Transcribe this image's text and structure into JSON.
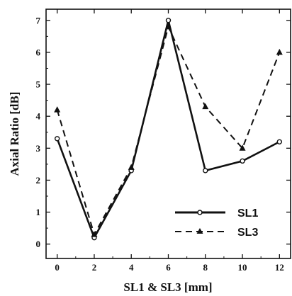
{
  "chart_data": {
    "type": "line",
    "xlabel": "SL1 & SL3 [mm]",
    "ylabel": "Axial Ratio [dB]",
    "xlim": [
      -0.6,
      12.6
    ],
    "ylim": [
      -0.45,
      7.35
    ],
    "xticks": [
      "0",
      "2",
      "4",
      "6",
      "8",
      "10",
      "12"
    ],
    "yticks": [
      "0",
      "1",
      "2",
      "3",
      "4",
      "5",
      "6",
      "7"
    ],
    "grid": false,
    "legend_position": "bottom-right",
    "series": [
      {
        "name": "SL1",
        "style": "solid",
        "marker": "circle",
        "x": [
          0,
          2,
          4,
          6,
          8,
          10,
          12
        ],
        "y": [
          3.3,
          0.2,
          2.3,
          7.0,
          2.3,
          2.6,
          3.2
        ]
      },
      {
        "name": "SL3",
        "style": "dashed",
        "marker": "triangle",
        "x": [
          0,
          2,
          4,
          6,
          8,
          10,
          12
        ],
        "y": [
          4.2,
          0.3,
          2.4,
          6.8,
          4.3,
          3.0,
          6.0
        ]
      }
    ],
    "colors": {
      "line": "#111111",
      "background": "#ffffff"
    }
  }
}
